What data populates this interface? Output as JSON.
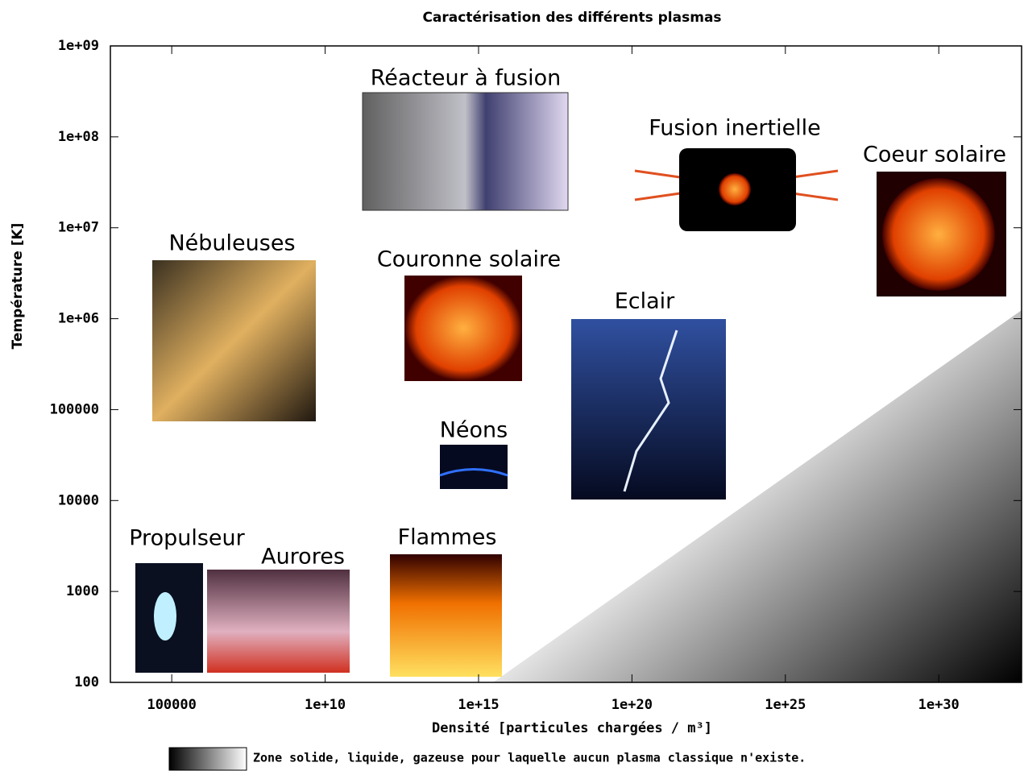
{
  "chart_data": {
    "type": "annotated-scatter",
    "title": "Caractérisation des différents plasmas",
    "x_label": "Densité [particules chargées / m³]",
    "y_label": "Température [K]",
    "x_log": true,
    "y_log": true,
    "xlim": [
      1000,
      5e+32
    ],
    "ylim": [
      100,
      1000000000
    ],
    "xticks": [
      100000,
      {
        "value": 10000000000.0,
        "label": "1e+10"
      },
      {
        "value": 1000000000000000.0,
        "label": "1e+15"
      },
      {
        "value": 1e+20,
        "label": "1e+20"
      },
      {
        "value": 1e+25,
        "label": "1e+25"
      },
      {
        "value": 1e+30,
        "label": "1e+30"
      }
    ],
    "yticks": [
      100,
      1000,
      10000,
      100000,
      {
        "value": 1000000,
        "label": "1e+06"
      },
      {
        "value": 10000000,
        "label": "1e+07"
      },
      {
        "value": 100000000,
        "label": "1e+08"
      },
      {
        "value": 1000000000,
        "label": "1e+09"
      }
    ],
    "annotations": [
      "Réacteur à fusion",
      "Fusion inertielle",
      "Coeur solaire",
      "Nébuleuses",
      "Couronne solaire",
      "Eclair",
      "Néons",
      "Propulseur",
      "Aurores",
      "Flammes"
    ],
    "legend": "Zone solide, liquide, gazeuse pour laquelle aucun plasma classique n'existe."
  }
}
